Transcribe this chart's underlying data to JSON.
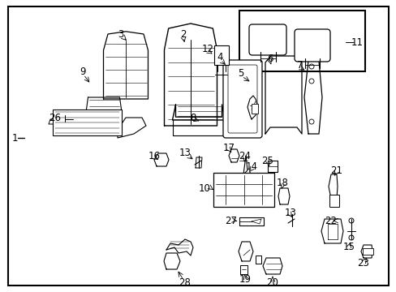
{
  "bg_color": "#ffffff",
  "border_color": "#000000",
  "fig_width": 4.89,
  "fig_height": 3.6,
  "dpi": 100,
  "fontsize": 8.5,
  "fontsize_small": 7.5
}
